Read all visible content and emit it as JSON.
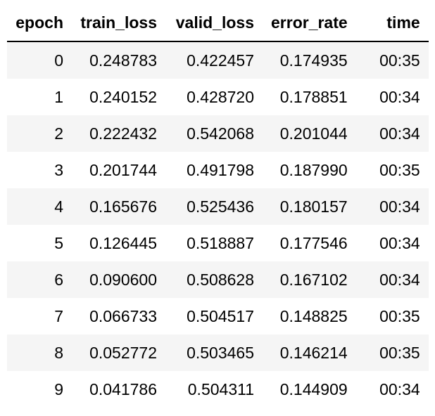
{
  "table": {
    "description": "training-metrics-table",
    "columns": [
      "epoch",
      "train_loss",
      "valid_loss",
      "error_rate",
      "time"
    ],
    "rows": [
      {
        "epoch": "0",
        "train_loss": "0.248783",
        "valid_loss": "0.422457",
        "error_rate": "0.174935",
        "time": "00:35"
      },
      {
        "epoch": "1",
        "train_loss": "0.240152",
        "valid_loss": "0.428720",
        "error_rate": "0.178851",
        "time": "00:34"
      },
      {
        "epoch": "2",
        "train_loss": "0.222432",
        "valid_loss": "0.542068",
        "error_rate": "0.201044",
        "time": "00:34"
      },
      {
        "epoch": "3",
        "train_loss": "0.201744",
        "valid_loss": "0.491798",
        "error_rate": "0.187990",
        "time": "00:35"
      },
      {
        "epoch": "4",
        "train_loss": "0.165676",
        "valid_loss": "0.525436",
        "error_rate": "0.180157",
        "time": "00:34"
      },
      {
        "epoch": "5",
        "train_loss": "0.126445",
        "valid_loss": "0.518887",
        "error_rate": "0.177546",
        "time": "00:34"
      },
      {
        "epoch": "6",
        "train_loss": "0.090600",
        "valid_loss": "0.508628",
        "error_rate": "0.167102",
        "time": "00:34"
      },
      {
        "epoch": "7",
        "train_loss": "0.066733",
        "valid_loss": "0.504517",
        "error_rate": "0.148825",
        "time": "00:35"
      },
      {
        "epoch": "8",
        "train_loss": "0.052772",
        "valid_loss": "0.503465",
        "error_rate": "0.146214",
        "time": "00:35"
      },
      {
        "epoch": "9",
        "train_loss": "0.041786",
        "valid_loss": "0.504311",
        "error_rate": "0.144909",
        "time": "00:34"
      }
    ],
    "colors": {
      "stripe": "#f5f5f5",
      "border": "#000000",
      "text": "#000000",
      "background": "#ffffff"
    }
  }
}
